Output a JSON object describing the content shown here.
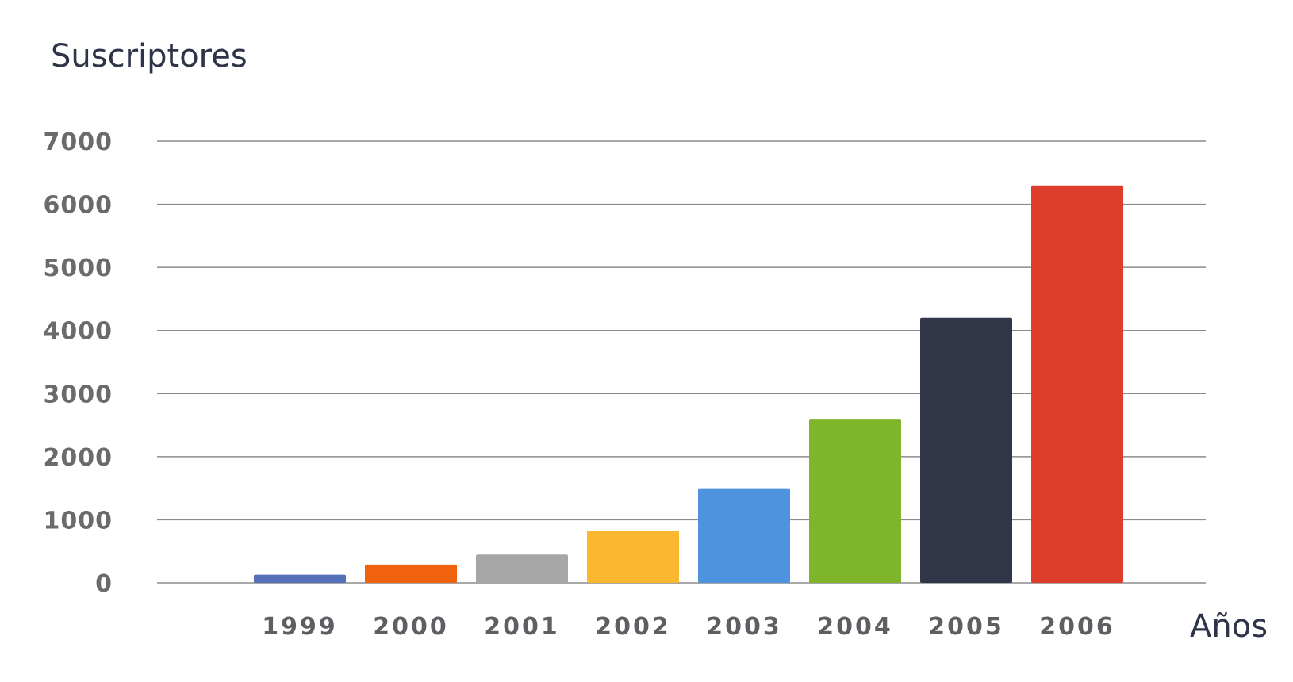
{
  "chart_data": {
    "type": "bar",
    "ylabel": "Suscriptores",
    "xlabel": "Años",
    "categories": [
      "1999",
      "2000",
      "2001",
      "2002",
      "2003",
      "2004",
      "2005",
      "2006"
    ],
    "values": [
      130,
      290,
      450,
      830,
      1500,
      2600,
      4200,
      6300
    ],
    "colors": [
      "#5470b8",
      "#f0620e",
      "#a6a6a6",
      "#fbb72f",
      "#4e93dd",
      "#7eb52a",
      "#313649",
      "#dd3d2b"
    ],
    "ylim": [
      0,
      7000
    ],
    "yticks": [
      "0",
      "1000",
      "2000",
      "3000",
      "4000",
      "5000",
      "6000",
      "7000"
    ],
    "grid": true
  }
}
